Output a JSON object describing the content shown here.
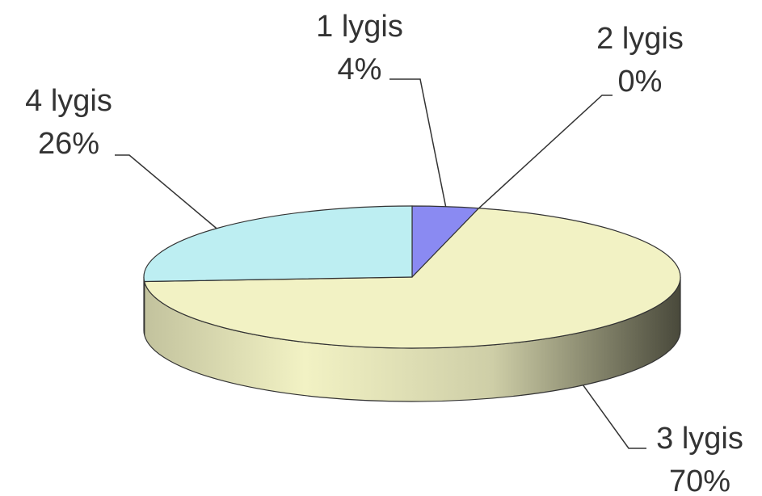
{
  "chart_data": {
    "type": "pie",
    "categories": [
      "1 lygis",
      "2 lygis",
      "3 lygis",
      "4 lygis"
    ],
    "values": [
      4,
      0,
      70,
      26
    ],
    "value_labels": [
      "4%",
      "0%",
      "70%",
      "26%"
    ],
    "colors": [
      "#8a8af2",
      "#8a3a5a",
      "#f2f2c4",
      "#bdeef2"
    ]
  }
}
